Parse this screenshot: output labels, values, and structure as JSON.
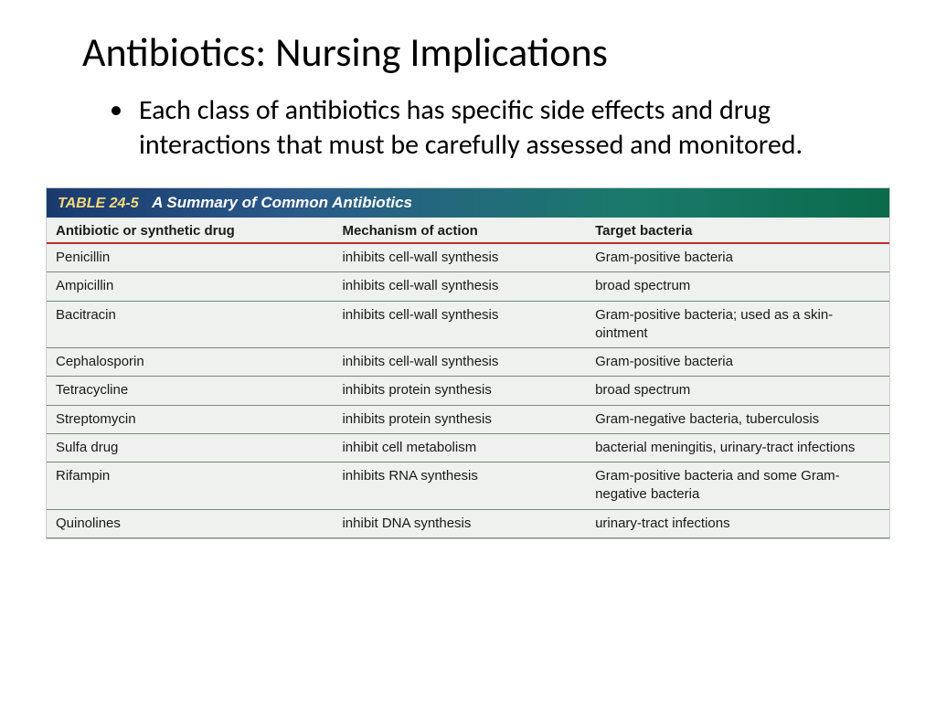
{
  "slide": {
    "title": "Antibiotics:  Nursing Implications",
    "bullet": "Each class of antibiotics has specific side effects and drug interactions that must be carefully assessed and monitored."
  },
  "table": {
    "number": "TABLE 24-5",
    "caption": "A Summary of Common Antibiotics",
    "header_bar_gradient": [
      "#1a3a6e",
      "#2a5a8a",
      "#1a7a6a",
      "#0a6a4a"
    ],
    "header_underline_color": "#b83030",
    "row_border_color": "#7a8a7a",
    "background_color": "#eef1ed",
    "font_family": "Verdana",
    "header_fontsize": 15,
    "cell_fontsize": 15,
    "columns": [
      {
        "label": "Antibiotic or synthetic drug",
        "width_pct": 34
      },
      {
        "label": "Mechanism of action",
        "width_pct": 30
      },
      {
        "label": "Target bacteria",
        "width_pct": 36
      }
    ],
    "rows": [
      [
        "Penicillin",
        "inhibits cell-wall synthesis",
        "Gram-positive bacteria"
      ],
      [
        "Ampicillin",
        "inhibits cell-wall synthesis",
        "broad spectrum"
      ],
      [
        "Bacitracin",
        "inhibits cell-wall synthesis",
        "Gram-positive bacteria; used as a skin-ointment"
      ],
      [
        "Cephalosporin",
        "inhibits cell-wall synthesis",
        "Gram-positive bacteria"
      ],
      [
        "Tetracycline",
        "inhibits protein synthesis",
        "broad spectrum"
      ],
      [
        "Streptomycin",
        "inhibits protein synthesis",
        "Gram-negative bacteria, tuberculosis"
      ],
      [
        "Sulfa drug",
        "inhibit cell metabolism",
        "bacterial meningitis, urinary-tract infections"
      ],
      [
        "Rifampin",
        "inhibits RNA synthesis",
        "Gram-positive bacteria and some Gram-negative bacteria"
      ],
      [
        "Quinolines",
        "inhibit DNA synthesis",
        "urinary-tract infections"
      ]
    ]
  }
}
